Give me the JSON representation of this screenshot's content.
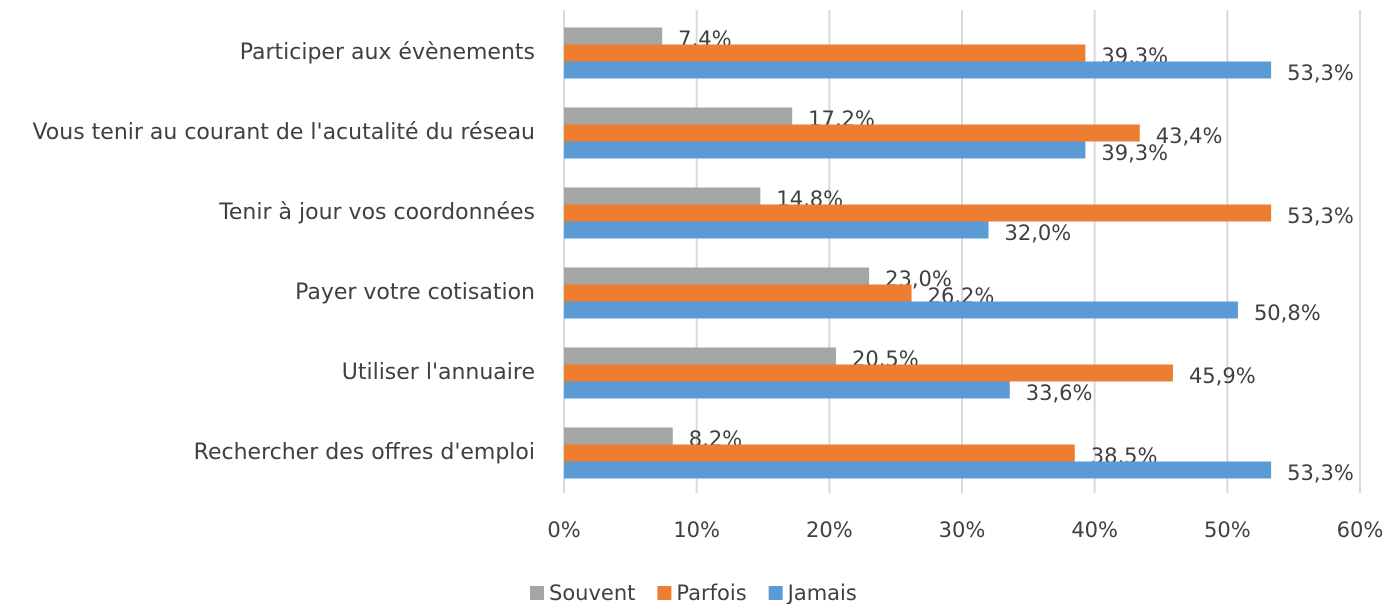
{
  "chart_data": {
    "type": "bar",
    "orientation": "horizontal",
    "categories": [
      "Participer aux évènements",
      "Vous tenir au courant de l'acutalité du réseau",
      "Tenir à jour vos coordonnées",
      "Payer votre cotisation",
      "Utiliser l'annuaire",
      "Rechercher des offres d'emploi"
    ],
    "series": [
      {
        "name": "Souvent",
        "color": "#a5a5a5",
        "values": [
          7.4,
          17.2,
          14.8,
          23.0,
          20.5,
          8.2
        ],
        "value_labels": [
          "7,4%",
          "17,2%",
          "14,8%",
          "23,0%",
          "20,5%",
          "8,2%"
        ]
      },
      {
        "name": "Parfois",
        "color": "#ed7d31",
        "values": [
          39.3,
          43.4,
          53.3,
          26.2,
          45.9,
          38.5
        ],
        "value_labels": [
          "39,3%",
          "43,4%",
          "53,3%",
          "26,2%",
          "45,9%",
          "38,5%"
        ]
      },
      {
        "name": "Jamais",
        "color": "#5b9bd5",
        "values": [
          53.3,
          39.3,
          32.0,
          50.8,
          33.6,
          53.3
        ],
        "value_labels": [
          "53,3%",
          "39,3%",
          "32,0%",
          "50,8%",
          "33,6%",
          "53,3%"
        ]
      }
    ],
    "xlim": [
      0,
      60
    ],
    "xticks": [
      {
        "value": 0,
        "label": "0%"
      },
      {
        "value": 10,
        "label": "10%"
      },
      {
        "value": 20,
        "label": "20%"
      },
      {
        "value": 30,
        "label": "30%"
      },
      {
        "value": 40,
        "label": "40%"
      },
      {
        "value": 50,
        "label": "50%"
      },
      {
        "value": 60,
        "label": "60%"
      }
    ],
    "grid": true,
    "legend": "bottom"
  }
}
